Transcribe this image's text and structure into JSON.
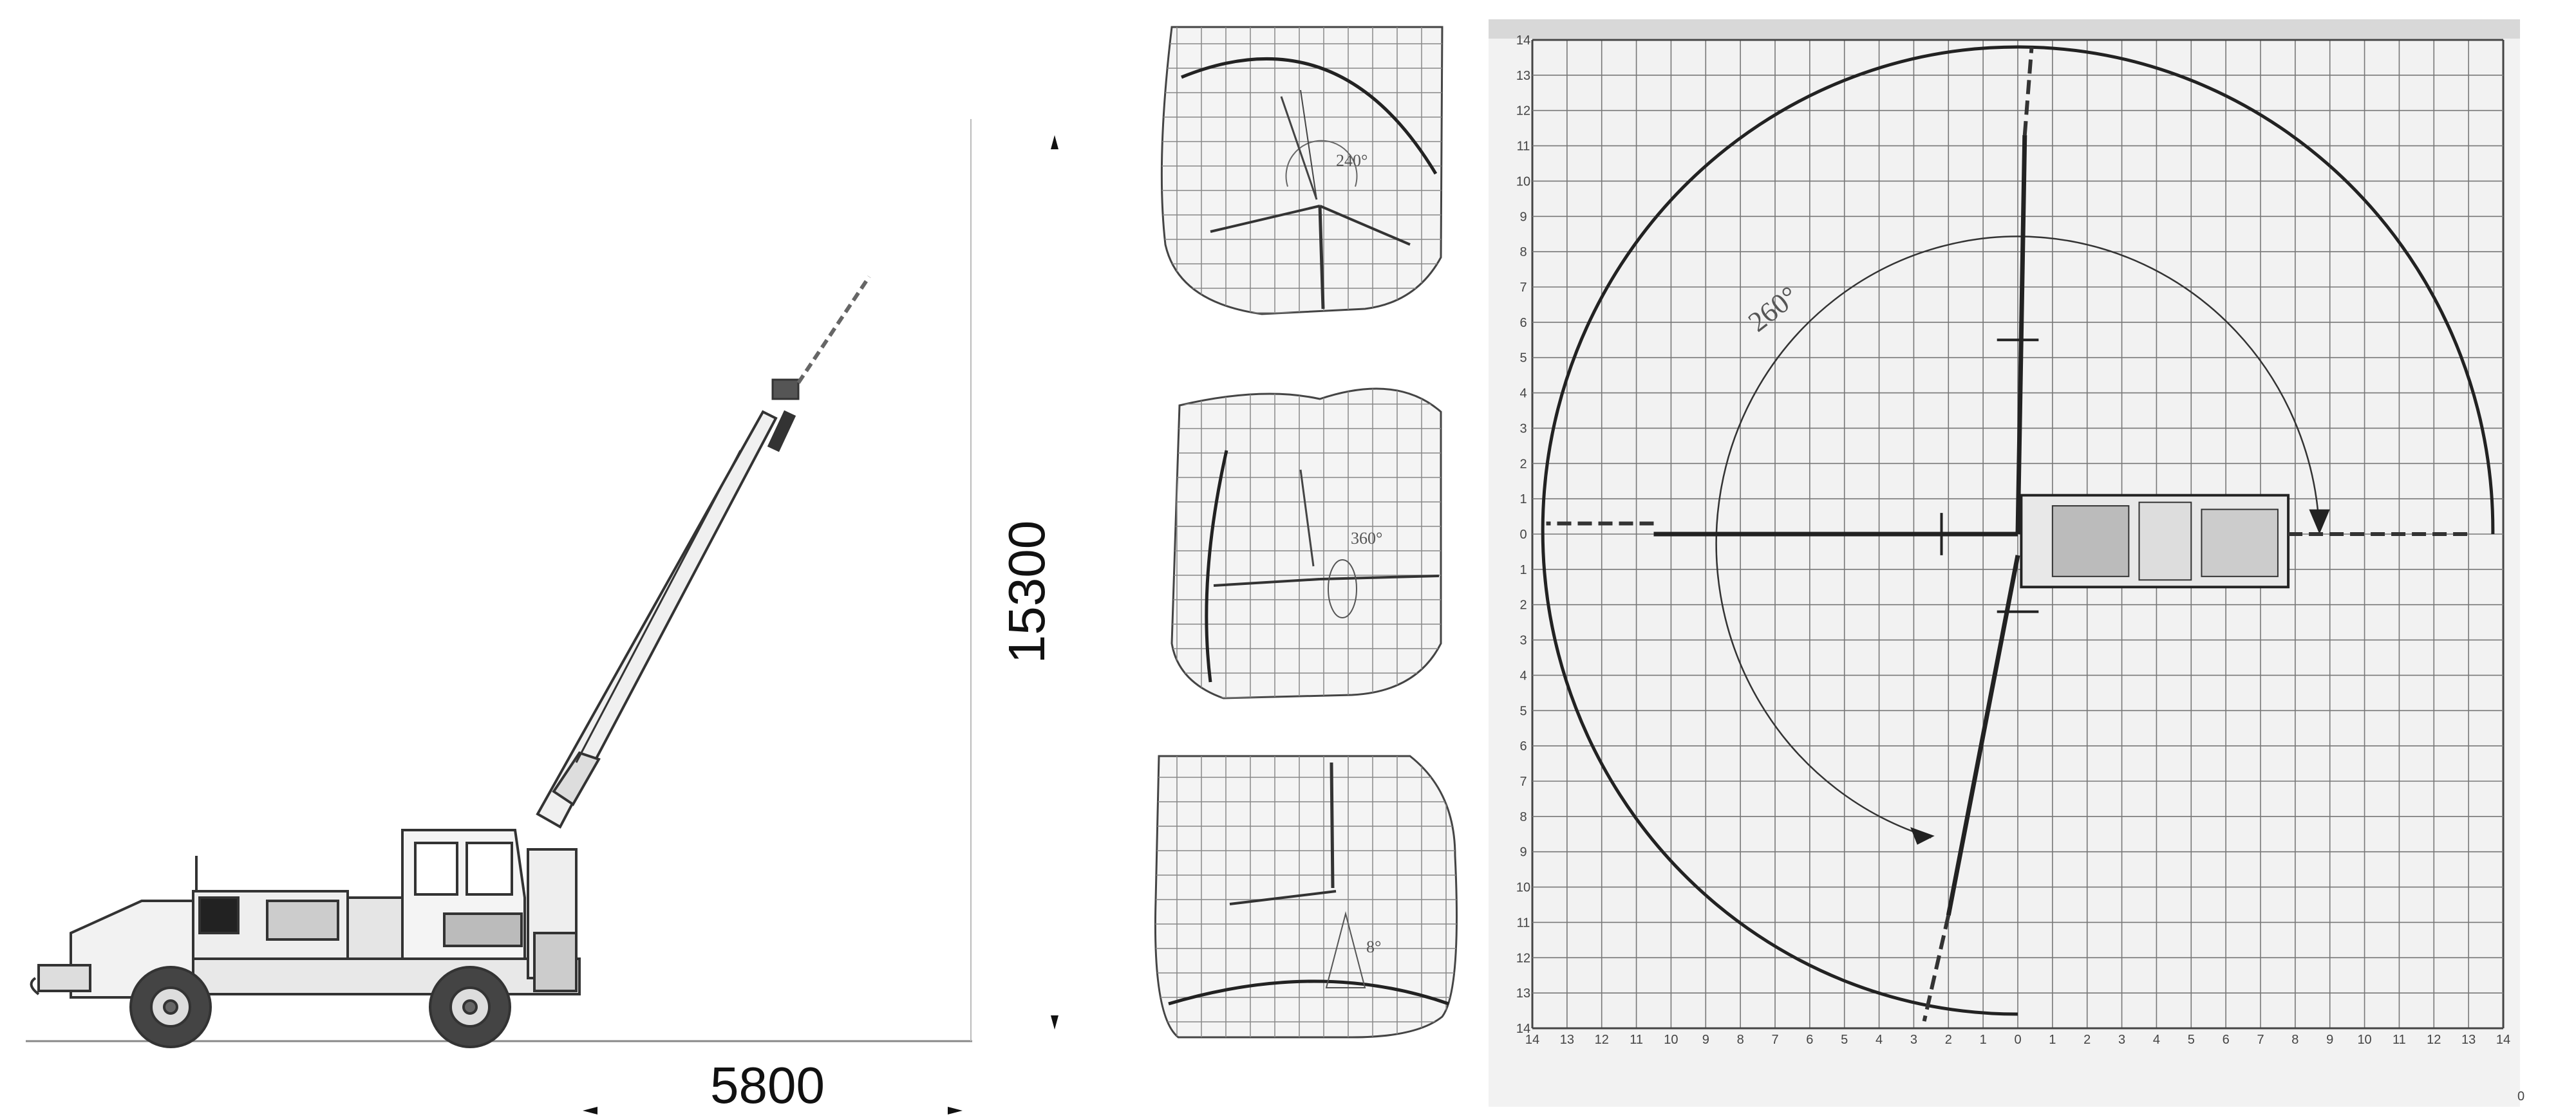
{
  "dimensions": {
    "width_label": "5800",
    "height_label": "15300"
  },
  "insets": [
    {
      "angle_label": "240°"
    },
    {
      "angle_label": "360°"
    },
    {
      "angle_label": "8°"
    }
  ],
  "plan_view": {
    "angle_label": "260°",
    "x_ticks": [
      "14",
      "13",
      "12",
      "11",
      "10",
      "9",
      "8",
      "7",
      "6",
      "5",
      "4",
      "3",
      "2",
      "1",
      "0",
      "1",
      "2",
      "3",
      "4",
      "5",
      "6",
      "7",
      "8",
      "9",
      "10",
      "11",
      "12",
      "13",
      "14"
    ],
    "y_ticks": [
      "14",
      "13",
      "12",
      "11",
      "10",
      "9",
      "8",
      "7",
      "6",
      "5",
      "4",
      "3",
      "2",
      "1",
      "0",
      "1",
      "2",
      "3",
      "4",
      "5",
      "6",
      "7",
      "8",
      "9",
      "10",
      "11",
      "12",
      "13",
      "14"
    ],
    "corner_label": "0"
  }
}
